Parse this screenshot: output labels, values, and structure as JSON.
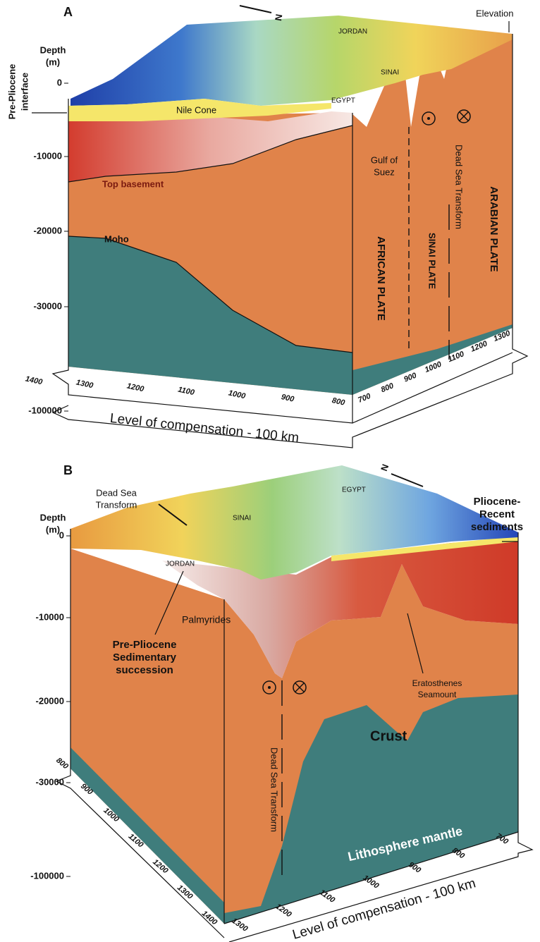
{
  "panel_a": {
    "label": "A",
    "north": "N",
    "depth_label": [
      "Depth",
      "(m)"
    ],
    "depth_ticks": [
      0,
      -10000,
      -20000,
      -30000,
      -100000
    ],
    "interface_label": [
      "Pre-Pliocene",
      "interface"
    ],
    "elevation_label": "Elevation",
    "places": [
      "JORDAN",
      "SINAI",
      "EGYPT"
    ],
    "features": {
      "nile_cone": "Nile Cone",
      "top_basement": "Top basement",
      "moho": "Moho",
      "gulf_of_suez": [
        "Gulf of",
        "Suez"
      ],
      "dead_sea_transform": "Dead Sea Transform"
    },
    "plates": [
      "AFRICAN PLATE",
      "SINAI PLATE",
      "ARABIAN PLATE"
    ],
    "axis_left": [
      1400,
      1300,
      1200,
      1100,
      1000,
      900,
      800
    ],
    "axis_right": [
      700,
      800,
      900,
      1000,
      1100,
      1200,
      1300
    ],
    "base_label": "Level of compensation - 100 km"
  },
  "panel_b": {
    "label": "B",
    "north": "N",
    "dead_sea_transform_top": [
      "Dead Sea",
      "Transform"
    ],
    "depth_label": [
      "Depth",
      "(m)"
    ],
    "depth_ticks": [
      0,
      -10000,
      -20000,
      -30000,
      -100000
    ],
    "places": [
      "EGYPT",
      "SINAI",
      "JORDAN"
    ],
    "sediments_label": [
      "Pliocene-",
      "Recent",
      "sediments"
    ],
    "palmyrides": "Palmyrides",
    "succession_label": [
      "Pre-Pliocene",
      "Sedimentary",
      "succession"
    ],
    "seamount_label": [
      "Eratosthenes",
      "Seamount"
    ],
    "crust": "Crust",
    "dead_sea_transform": "Dead Sea Transform",
    "mantle": "Lithosphere mantle",
    "axis_left": [
      800,
      900,
      1000,
      1100,
      1200,
      1300,
      1400
    ],
    "axis_right": [
      1300,
      1200,
      1100,
      1000,
      900,
      800,
      700
    ],
    "base_label": "Level of compensation - 100 km"
  }
}
